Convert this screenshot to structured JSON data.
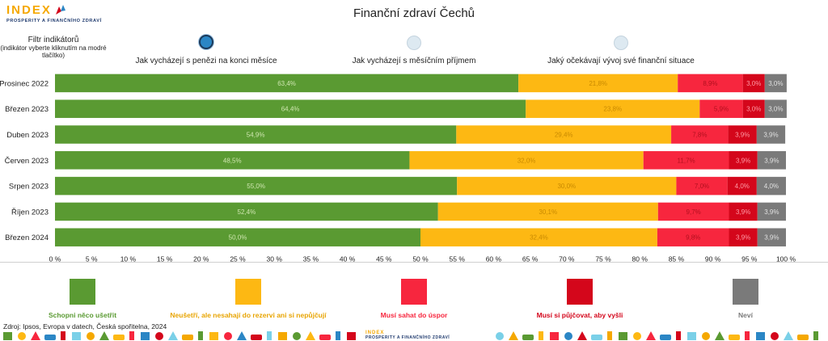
{
  "brand": {
    "word": "INDEX",
    "subtitle": "PROSPERITY A FINANČNÍHO ZDRAVÍ"
  },
  "page_title": "Finanční zdraví Čechů",
  "filter": {
    "title": "Filtr indikátorů",
    "hint_line1": "(indikátor vyberte kliknutím na modré",
    "hint_line2": "tlačítko)",
    "options": [
      {
        "label": "Jak vycházejí s penězi na konci měsíce",
        "selected": true
      },
      {
        "label": "Jak vycházejí s měsíčním příjmem",
        "selected": false
      },
      {
        "label": "Jaký očekávají vývoj své finanční situace",
        "selected": false
      }
    ]
  },
  "chart_data": {
    "type": "bar",
    "orientation": "horizontal",
    "stacked": true,
    "title": "Finanční zdraví Čechů",
    "categories": [
      "Prosinec 2022",
      "Březen 2023",
      "Duben 2023",
      "Červen 2023",
      "Srpen 2023",
      "Říjen 2023",
      "Březen 2024"
    ],
    "series": [
      {
        "name": "Schopni něco ušetřit",
        "color": "#5a9a32",
        "label_color": "#cfe6b0",
        "values": [
          63.4,
          64.4,
          54.9,
          48.5,
          55.0,
          52.4,
          50.0
        ]
      },
      {
        "name": "Neušetří, ale nesahají do rezervi ani si nepůjčují",
        "color": "#fdb813",
        "label_color": "#c98a00",
        "values": [
          21.8,
          23.8,
          29.4,
          32.0,
          30.0,
          30.1,
          32.4
        ]
      },
      {
        "name": "Musí sahat do úspor",
        "color": "#f7263e",
        "label_color": "#b2101f",
        "values": [
          8.9,
          5.9,
          7.8,
          11.7,
          7.0,
          9.7,
          9.8
        ]
      },
      {
        "name": "Musí si půjčovat, aby vyšli",
        "color": "#d4061b",
        "label_color": "#ff9aa5",
        "values": [
          3.0,
          3.0,
          3.9,
          3.9,
          4.0,
          3.9,
          3.9
        ]
      },
      {
        "name": "Neví",
        "color": "#7a7a7a",
        "label_color": "#e0e0e0",
        "values": [
          3.0,
          3.0,
          3.9,
          3.9,
          4.0,
          3.9,
          3.9
        ]
      }
    ],
    "value_labels": [
      [
        "63,4%",
        "21,8%",
        "8,9%",
        "3,0%",
        "3,0%"
      ],
      [
        "64,4%",
        "23,8%",
        "5,9%",
        "3,0%",
        "3,0%"
      ],
      [
        "54,9%",
        "29,4%",
        "7,8%",
        "3,9%",
        "3,9%"
      ],
      [
        "48,5%",
        "32,0%",
        "11,7%",
        "3,9%",
        "3,9%"
      ],
      [
        "55,0%",
        "30,0%",
        "7,0%",
        "4,0%",
        "4,0%"
      ],
      [
        "52,4%",
        "30,1%",
        "9,7%",
        "3,9%",
        "3,9%"
      ],
      [
        "50,0%",
        "32,4%",
        "9,8%",
        "3,9%",
        "3,9%"
      ]
    ],
    "xlim": [
      0,
      100
    ],
    "x_ticks": [
      0,
      5,
      10,
      15,
      20,
      25,
      30,
      35,
      40,
      45,
      50,
      55,
      60,
      65,
      70,
      75,
      80,
      85,
      90,
      95,
      100
    ],
    "x_tick_labels": [
      "0 %",
      "5 %",
      "10 %",
      "15 %",
      "20 %",
      "25 %",
      "30 %",
      "35 %",
      "40 %",
      "45 %",
      "50 %",
      "55 %",
      "60 %",
      "65 %",
      "70 %",
      "75 %",
      "80 %",
      "85 %",
      "90 %",
      "95 %",
      "100 %"
    ],
    "legend_placement": "bottom"
  },
  "legend": [
    {
      "label": "Schopni něco ušetřit",
      "color": "#5a9a32",
      "text_color": "#5a9a32"
    },
    {
      "label": "Neušetří, ale nesahají do rezervi ani si nepůjčují",
      "color": "#fdb813",
      "text_color": "#e8a400"
    },
    {
      "label": "Musí sahat do úspor",
      "color": "#f7263e",
      "text_color": "#f7263e"
    },
    {
      "label": "Musí si půjčovat, aby vyšli",
      "color": "#d4061b",
      "text_color": "#d4061b"
    },
    {
      "label": "Neví",
      "color": "#7a7a7a",
      "text_color": "#7a7a7a"
    }
  ],
  "source": "Zdroj: Ipsos, Evropa v datech, Česká spořitelna, 2024",
  "footer_brand": {
    "word": "INDEX",
    "subtitle": "PROSPERITY A FINANČNÍHO ZDRAVÍ"
  }
}
